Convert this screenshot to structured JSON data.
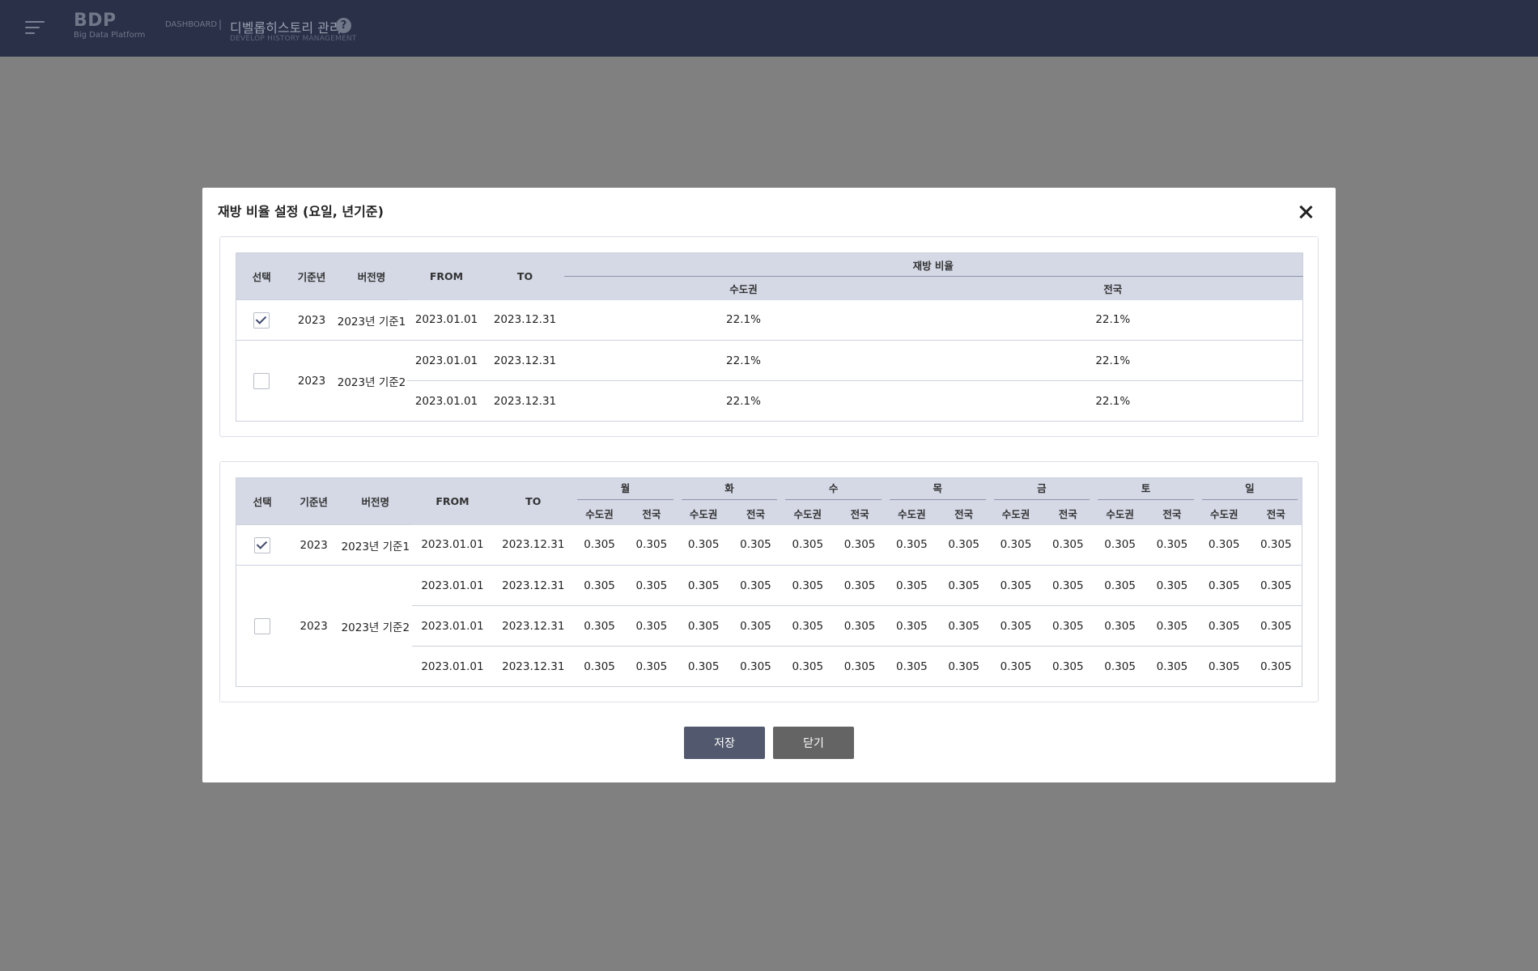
{
  "header": {
    "logo_title": "BDP",
    "logo_subtitle": "Big Data Platform",
    "breadcrumb": "DASHBOARD",
    "separator": "|",
    "page_title": "디벨롭히스토리 관리",
    "help_label": "?",
    "page_subtitle": "DEVELOP HISTORY MANAGEMENT"
  },
  "modal": {
    "title": "재방 비율 설정 (요일, 년기준)",
    "save_label": "저장",
    "close_label": "닫기"
  },
  "table1": {
    "headers": {
      "select": "선택",
      "year": "기준년",
      "version": "버전명",
      "from": "FROM",
      "to": "TO",
      "ratio_group": "재방 비율",
      "metro": "수도권",
      "national": "전국"
    },
    "groups": [
      {
        "checked": true,
        "year": "2023",
        "version": "2023년 기준1",
        "rows": [
          {
            "from": "2023.01.01",
            "to": "2023.12.31",
            "metro": "22.1%",
            "national": "22.1%"
          }
        ]
      },
      {
        "checked": false,
        "year": "2023",
        "version": "2023년 기준2",
        "rows": [
          {
            "from": "2023.01.01",
            "to": "2023.12.31",
            "metro": "22.1%",
            "national": "22.1%"
          },
          {
            "from": "2023.01.01",
            "to": "2023.12.31",
            "metro": "22.1%",
            "national": "22.1%"
          }
        ]
      }
    ]
  },
  "table2": {
    "headers": {
      "select": "선택",
      "year": "기준년",
      "version": "버전명",
      "from": "FROM",
      "to": "TO",
      "metro": "수도권",
      "national": "전국"
    },
    "days": [
      "월",
      "화",
      "수",
      "목",
      "금",
      "토",
      "일"
    ],
    "groups": [
      {
        "checked": true,
        "year": "2023",
        "version": "2023년 기준1",
        "rows": [
          {
            "from": "2023.01.01",
            "to": "2023.12.31",
            "values": [
              "0.305",
              "0.305",
              "0.305",
              "0.305",
              "0.305",
              "0.305",
              "0.305",
              "0.305",
              "0.305",
              "0.305",
              "0.305",
              "0.305",
              "0.305",
              "0.305"
            ]
          }
        ]
      },
      {
        "checked": false,
        "year": "2023",
        "version": "2023년 기준2",
        "rows": [
          {
            "from": "2023.01.01",
            "to": "2023.12.31",
            "values": [
              "0.305",
              "0.305",
              "0.305",
              "0.305",
              "0.305",
              "0.305",
              "0.305",
              "0.305",
              "0.305",
              "0.305",
              "0.305",
              "0.305",
              "0.305",
              "0.305"
            ]
          },
          {
            "from": "2023.01.01",
            "to": "2023.12.31",
            "values": [
              "0.305",
              "0.305",
              "0.305",
              "0.305",
              "0.305",
              "0.305",
              "0.305",
              "0.305",
              "0.305",
              "0.305",
              "0.305",
              "0.305",
              "0.305",
              "0.305"
            ]
          },
          {
            "from": "2023.01.01",
            "to": "2023.12.31",
            "values": [
              "0.305",
              "0.305",
              "0.305",
              "0.305",
              "0.305",
              "0.305",
              "0.305",
              "0.305",
              "0.305",
              "0.305",
              "0.305",
              "0.305",
              "0.305",
              "0.305"
            ]
          }
        ]
      }
    ]
  },
  "colors": {
    "topbar": "#2a3047",
    "overlay": "#808080",
    "table_header": "#d5d9e6",
    "save_button": "#52586d",
    "close_button": "#646464"
  }
}
